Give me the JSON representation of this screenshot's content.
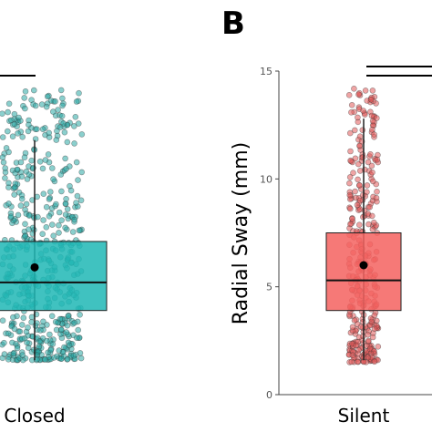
{
  "chart_data": [
    {
      "type": "box",
      "panel": "",
      "categories": [
        "Closed"
      ],
      "xlabel": "",
      "ylabel": "",
      "color": "#1fb7b5",
      "point_color": "#2aa7a4",
      "box": {
        "q1": 3.9,
        "median": 5.2,
        "q3": 7.1,
        "mean": 5.9,
        "whisker_low": 1.6,
        "whisker_high": 11.8
      },
      "points_range": [
        1.6,
        14.2
      ],
      "ylim": [
        0,
        15
      ]
    },
    {
      "type": "box",
      "panel": "B",
      "categories": [
        "Silent"
      ],
      "xlabel": "",
      "ylabel": "Radial Sway (mm)",
      "yticks": [
        0,
        5,
        10,
        15
      ],
      "color": "#f4625f",
      "point_color": "#e15a5a",
      "box": {
        "q1": 3.9,
        "median": 5.3,
        "q3": 7.5,
        "mean": 6.0,
        "whisker_low": 1.6,
        "whisker_high": 12.8
      },
      "points_range": [
        1.5,
        14.2
      ],
      "ylim": [
        0,
        15
      ]
    }
  ]
}
